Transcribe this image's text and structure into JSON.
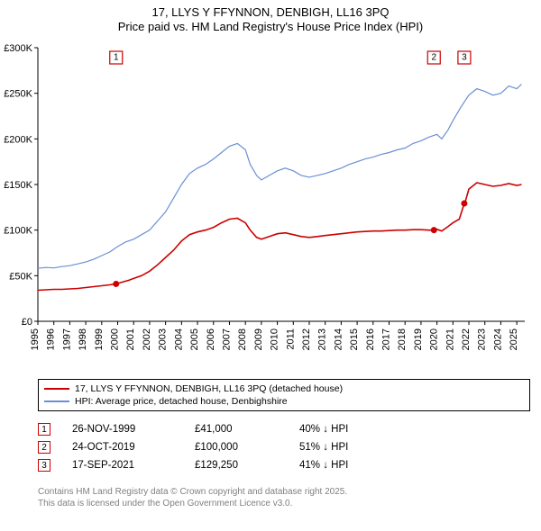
{
  "title": {
    "line1": "17, LLYS Y FFYNNON, DENBIGH, LL16 3PQ",
    "line2": "Price paid vs. HM Land Registry's House Price Index (HPI)"
  },
  "chart": {
    "type": "line",
    "background_color": "#ffffff",
    "axis_color": "#000000",
    "tick_font_size": 11,
    "ylim": [
      0,
      300000
    ],
    "ytick_step": 50000,
    "ytick_labels": [
      "£0",
      "£50K",
      "£100K",
      "£150K",
      "£200K",
      "£250K",
      "£300K"
    ],
    "xlim": [
      1995,
      2025.5
    ],
    "xtick_step": 1,
    "xtick_labels": [
      "1995",
      "1996",
      "1997",
      "1998",
      "1999",
      "2000",
      "2001",
      "2002",
      "2003",
      "2004",
      "2005",
      "2006",
      "2007",
      "2008",
      "2009",
      "2010",
      "2011",
      "2012",
      "2013",
      "2014",
      "2015",
      "2016",
      "2017",
      "2018",
      "2019",
      "2020",
      "2021",
      "2022",
      "2023",
      "2024",
      "2025"
    ],
    "series": [
      {
        "name": "hpi",
        "label": "HPI: Average price, detached house, Denbighshire",
        "color": "#6b8fd4",
        "line_width": 1.2,
        "points": [
          [
            1995.0,
            58000
          ],
          [
            1995.5,
            59000
          ],
          [
            1996.0,
            58500
          ],
          [
            1996.5,
            60000
          ],
          [
            1997.0,
            61000
          ],
          [
            1997.5,
            63000
          ],
          [
            1998.0,
            65000
          ],
          [
            1998.5,
            68000
          ],
          [
            1999.0,
            72000
          ],
          [
            1999.5,
            76000
          ],
          [
            2000.0,
            82000
          ],
          [
            2000.5,
            87000
          ],
          [
            2001.0,
            90000
          ],
          [
            2001.5,
            95000
          ],
          [
            2002.0,
            100000
          ],
          [
            2002.5,
            110000
          ],
          [
            2003.0,
            120000
          ],
          [
            2003.5,
            135000
          ],
          [
            2004.0,
            150000
          ],
          [
            2004.5,
            162000
          ],
          [
            2005.0,
            168000
          ],
          [
            2005.5,
            172000
          ],
          [
            2006.0,
            178000
          ],
          [
            2006.5,
            185000
          ],
          [
            2007.0,
            192000
          ],
          [
            2007.5,
            195000
          ],
          [
            2008.0,
            188000
          ],
          [
            2008.3,
            172000
          ],
          [
            2008.7,
            160000
          ],
          [
            2009.0,
            155000
          ],
          [
            2009.5,
            160000
          ],
          [
            2010.0,
            165000
          ],
          [
            2010.5,
            168000
          ],
          [
            2011.0,
            165000
          ],
          [
            2011.5,
            160000
          ],
          [
            2012.0,
            158000
          ],
          [
            2012.5,
            160000
          ],
          [
            2013.0,
            162000
          ],
          [
            2013.5,
            165000
          ],
          [
            2014.0,
            168000
          ],
          [
            2014.5,
            172000
          ],
          [
            2015.0,
            175000
          ],
          [
            2015.5,
            178000
          ],
          [
            2016.0,
            180000
          ],
          [
            2016.5,
            183000
          ],
          [
            2017.0,
            185000
          ],
          [
            2017.5,
            188000
          ],
          [
            2018.0,
            190000
          ],
          [
            2018.5,
            195000
          ],
          [
            2019.0,
            198000
          ],
          [
            2019.5,
            202000
          ],
          [
            2020.0,
            205000
          ],
          [
            2020.3,
            200000
          ],
          [
            2020.7,
            210000
          ],
          [
            2021.0,
            220000
          ],
          [
            2021.5,
            235000
          ],
          [
            2022.0,
            248000
          ],
          [
            2022.5,
            255000
          ],
          [
            2023.0,
            252000
          ],
          [
            2023.5,
            248000
          ],
          [
            2024.0,
            250000
          ],
          [
            2024.5,
            258000
          ],
          [
            2025.0,
            255000
          ],
          [
            2025.3,
            260000
          ]
        ]
      },
      {
        "name": "property",
        "label": "17, LLYS Y FFYNNON, DENBIGH, LL16 3PQ (detached house)",
        "color": "#cc0000",
        "line_width": 1.6,
        "points": [
          [
            1995.0,
            34000
          ],
          [
            1995.5,
            34500
          ],
          [
            1996.0,
            35000
          ],
          [
            1996.5,
            35000
          ],
          [
            1997.0,
            35500
          ],
          [
            1997.5,
            36000
          ],
          [
            1998.0,
            37000
          ],
          [
            1998.5,
            38000
          ],
          [
            1999.0,
            39000
          ],
          [
            1999.5,
            40000
          ],
          [
            1999.9,
            41000
          ],
          [
            2000.3,
            43000
          ],
          [
            2000.7,
            45000
          ],
          [
            2001.0,
            47000
          ],
          [
            2001.5,
            50000
          ],
          [
            2002.0,
            55000
          ],
          [
            2002.5,
            62000
          ],
          [
            2003.0,
            70000
          ],
          [
            2003.5,
            78000
          ],
          [
            2004.0,
            88000
          ],
          [
            2004.5,
            95000
          ],
          [
            2005.0,
            98000
          ],
          [
            2005.5,
            100000
          ],
          [
            2006.0,
            103000
          ],
          [
            2006.5,
            108000
          ],
          [
            2007.0,
            112000
          ],
          [
            2007.5,
            113000
          ],
          [
            2008.0,
            108000
          ],
          [
            2008.3,
            100000
          ],
          [
            2008.7,
            92000
          ],
          [
            2009.0,
            90000
          ],
          [
            2009.5,
            93000
          ],
          [
            2010.0,
            96000
          ],
          [
            2010.5,
            97000
          ],
          [
            2011.0,
            95000
          ],
          [
            2011.5,
            93000
          ],
          [
            2012.0,
            92000
          ],
          [
            2012.5,
            93000
          ],
          [
            2013.0,
            94000
          ],
          [
            2013.5,
            95000
          ],
          [
            2014.0,
            96000
          ],
          [
            2014.5,
            97000
          ],
          [
            2015.0,
            98000
          ],
          [
            2015.5,
            98500
          ],
          [
            2016.0,
            99000
          ],
          [
            2016.5,
            99000
          ],
          [
            2017.0,
            99500
          ],
          [
            2017.5,
            100000
          ],
          [
            2018.0,
            100000
          ],
          [
            2018.5,
            100500
          ],
          [
            2019.0,
            100500
          ],
          [
            2019.5,
            100000
          ],
          [
            2019.81,
            100000
          ],
          [
            2020.0,
            101000
          ],
          [
            2020.3,
            99000
          ],
          [
            2020.7,
            104000
          ],
          [
            2021.0,
            108000
          ],
          [
            2021.4,
            112000
          ],
          [
            2021.71,
            129250
          ],
          [
            2021.72,
            128000
          ],
          [
            2022.0,
            145000
          ],
          [
            2022.5,
            152000
          ],
          [
            2023.0,
            150000
          ],
          [
            2023.5,
            148000
          ],
          [
            2024.0,
            149000
          ],
          [
            2024.5,
            151000
          ],
          [
            2025.0,
            149000
          ],
          [
            2025.3,
            150000
          ]
        ]
      }
    ],
    "sale_markers": [
      {
        "num": "1",
        "x": 1999.9,
        "y": 41000,
        "color": "#cc0000"
      },
      {
        "num": "2",
        "x": 2019.81,
        "y": 100000,
        "color": "#cc0000"
      },
      {
        "num": "3",
        "x": 2021.71,
        "y": 129250,
        "color": "#cc0000"
      }
    ]
  },
  "legend": {
    "rows": [
      {
        "color": "#cc0000",
        "label": "17, LLYS Y FFYNNON, DENBIGH, LL16 3PQ (detached house)"
      },
      {
        "color": "#6b8fd4",
        "label": "HPI: Average price, detached house, Denbighshire"
      }
    ]
  },
  "sales": [
    {
      "num": "1",
      "color": "#cc0000",
      "date": "26-NOV-1999",
      "price": "£41,000",
      "note": "40% ↓ HPI"
    },
    {
      "num": "2",
      "color": "#cc0000",
      "date": "24-OCT-2019",
      "price": "£100,000",
      "note": "51% ↓ HPI"
    },
    {
      "num": "3",
      "color": "#cc0000",
      "date": "17-SEP-2021",
      "price": "£129,250",
      "note": "41% ↓ HPI"
    }
  ],
  "footer": {
    "line1": "Contains HM Land Registry data © Crown copyright and database right 2025.",
    "line2": "This data is licensed under the Open Government Licence v3.0."
  }
}
